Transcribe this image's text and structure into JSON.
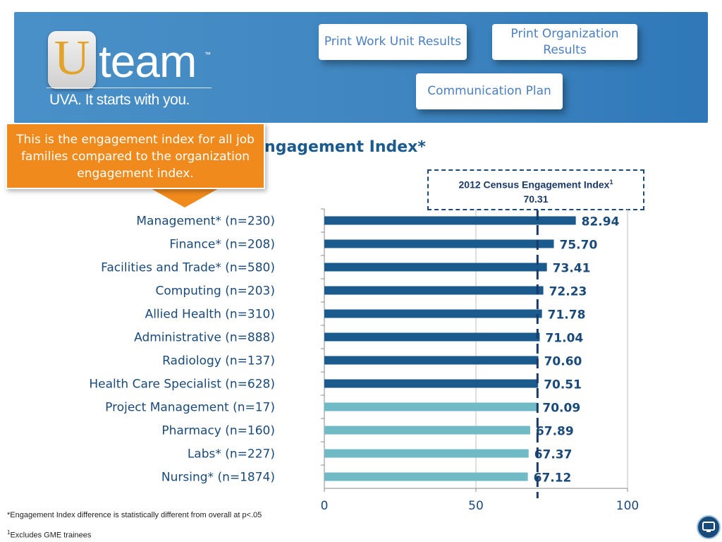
{
  "header": {
    "logo_letter": "U",
    "logo_word": "team",
    "logo_tm": "™",
    "logo_tagline": "UVA. It starts with you.",
    "buttons": {
      "print_work_unit": "Print Work Unit Results",
      "print_organization": "Print Organization Results",
      "communication_plan": "Communication Plan"
    }
  },
  "callout": {
    "text": "This is the engagement index for all job families compared to the organization engagement index."
  },
  "census_box": {
    "label": "2012 Census  Engagement Index",
    "superscript": "1",
    "value": "70.31"
  },
  "footnotes": {
    "significance": "*Engagement Index difference is statistically different from overall at p<.05",
    "gme_marker": "1",
    "gme": "Excludes GME trainees"
  },
  "colors": {
    "dark_bar": "#1b5a8c",
    "light_bar": "#6fbac5",
    "title": "#1a5a8c",
    "callout": "#f08a1c"
  },
  "icons": {
    "home": "screen-icon"
  },
  "chart_data": {
    "type": "bar",
    "orientation": "horizontal",
    "title": "mily Engagement Index*",
    "categories": [
      "Management* (n=230)",
      "Finance* (n=208)",
      "Facilities and Trade* (n=580)",
      "Computing (n=203)",
      "Allied Health (n=310)",
      "Administrative (n=888)",
      "Radiology (n=137)",
      "Health Care Specialist (n=628)",
      "Project Management (n=17)",
      "Pharmacy (n=160)",
      "Labs* (n=227)",
      "Nursing* (n=1874)"
    ],
    "values": [
      82.94,
      75.7,
      73.41,
      72.23,
      71.78,
      71.04,
      70.6,
      70.51,
      70.09,
      67.89,
      67.37,
      67.12
    ],
    "value_labels": [
      "82.94",
      "75.70",
      "73.41",
      "72.23",
      "71.78",
      "71.04",
      "70.60",
      "70.51",
      "70.09",
      "67.89",
      "67.37",
      "67.12"
    ],
    "bar_shade": [
      "dark",
      "dark",
      "dark",
      "dark",
      "dark",
      "dark",
      "dark",
      "dark",
      "light",
      "light",
      "light",
      "light"
    ],
    "reference_line": 70.31,
    "xlim": [
      0,
      100
    ],
    "xticks": [
      "0",
      "50",
      "100"
    ],
    "grid": "vertical gridlines"
  }
}
